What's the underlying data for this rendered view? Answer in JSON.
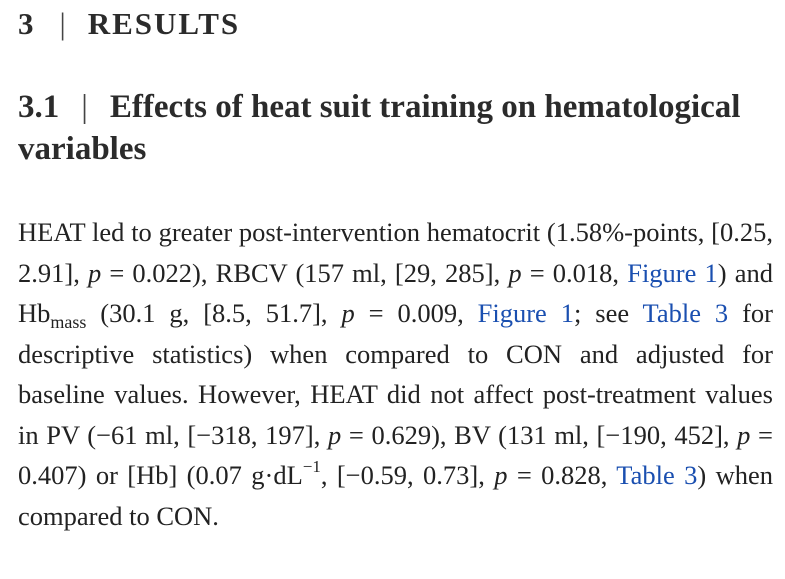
{
  "section": {
    "number": "3",
    "separator": "|",
    "title": "RESULTS"
  },
  "subsection": {
    "number": "3.1",
    "separator": "|",
    "title": "Effects of heat suit training on hematological variables"
  },
  "paragraph": {
    "t1": "HEAT led to greater post-intervention hematocrit (1.58%-points, [0.25, 2.91], ",
    "p_letter": "p",
    "t2": " = 0.022), RBCV (157 ml, [29, 285], ",
    "t3": " = 0.018, ",
    "figure_ref": "Figure 1",
    "t4": ") and Hb",
    "hb_subscript": "mass",
    "t5": " (30.1 g, [8.5, 51.7], ",
    "t6": " = 0.009, ",
    "t7": "; see ",
    "table_ref": "Table 3",
    "t8": " for descriptive statistics) when compared to CON and adjusted for baseline values. However, HEAT did not affect post-treatment values in PV (−61 ml, [−318, 197], ",
    "t9": " = 0.629), BV (131 ml, [−190, 452], ",
    "t10": " = 0.407) or [Hb] (0.07 g·dL",
    "exponent": "−1",
    "t11": ", [−0.59, 0.73], ",
    "t12": " = 0.828, ",
    "t13": ") when compared to CON."
  },
  "colors": {
    "link": "#1a4fb0",
    "text": "#222222"
  }
}
